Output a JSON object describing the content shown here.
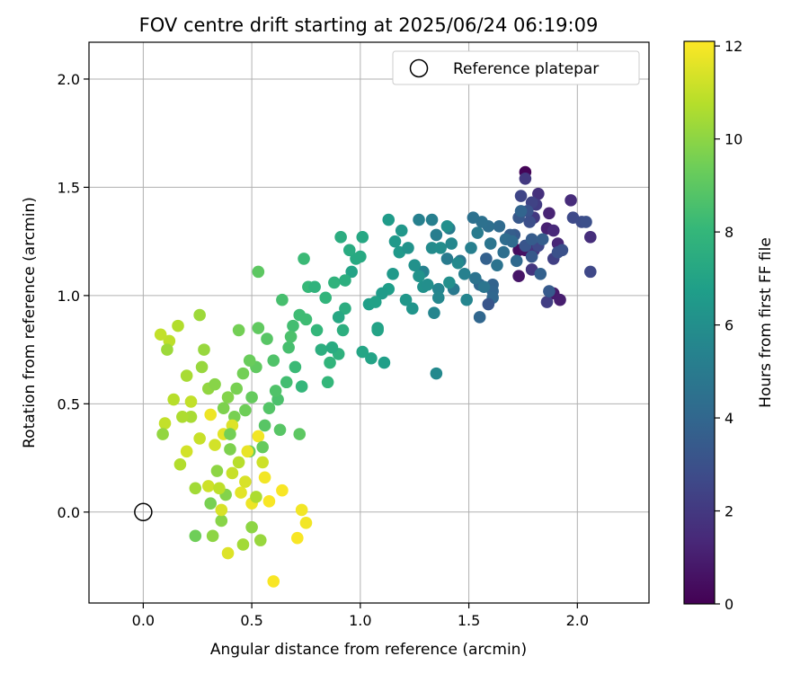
{
  "chart_data": {
    "type": "scatter",
    "title": "FOV centre drift starting at 2025/06/24 06:19:09",
    "xlabel": "Angular distance from reference (arcmin)",
    "ylabel": "Rotation from reference (arcmin)",
    "xlim": [
      -0.25,
      2.33
    ],
    "ylim": [
      -0.42,
      2.17
    ],
    "xticks": [
      0.0,
      0.5,
      1.0,
      1.5,
      2.0
    ],
    "yticks": [
      0.0,
      0.5,
      1.0,
      1.5,
      2.0
    ],
    "xtick_labels": [
      "0.0",
      "0.5",
      "1.0",
      "1.5",
      "2.0"
    ],
    "ytick_labels": [
      "0.0",
      "0.5",
      "1.0",
      "1.5",
      "2.0"
    ],
    "grid": true,
    "legend": {
      "placement": "top-right",
      "entries": [
        {
          "label": "Reference platepar",
          "marker": "open-circle"
        }
      ]
    },
    "reference_point": {
      "x": 0.0,
      "y": 0.0
    },
    "colorbar": {
      "label": "Hours from first FF file",
      "colormap": "viridis",
      "range": [
        0,
        12.1
      ],
      "ticks": [
        0,
        2,
        4,
        6,
        8,
        10,
        12
      ],
      "tick_labels": [
        "0",
        "2",
        "4",
        "6",
        "8",
        "10",
        "12"
      ]
    },
    "colormap_stops": [
      "#440154",
      "#482878",
      "#3e4a89",
      "#31688e",
      "#26828e",
      "#1f9e89",
      "#35b779",
      "#6ece58",
      "#b5de2b",
      "#fde725"
    ],
    "points": [
      {
        "x": 1.76,
        "y": 1.57,
        "h": 0.1
      },
      {
        "x": 1.73,
        "y": 1.21,
        "h": 0.4
      },
      {
        "x": 1.76,
        "y": 1.21,
        "h": 0.6
      },
      {
        "x": 1.73,
        "y": 1.09,
        "h": 0.7
      },
      {
        "x": 1.89,
        "y": 1.01,
        "h": 0.9
      },
      {
        "x": 1.92,
        "y": 0.98,
        "h": 1.0
      },
      {
        "x": 1.86,
        "y": 1.31,
        "h": 1.1
      },
      {
        "x": 1.87,
        "y": 1.38,
        "h": 1.2
      },
      {
        "x": 1.91,
        "y": 1.24,
        "h": 1.3
      },
      {
        "x": 1.89,
        "y": 1.3,
        "h": 1.4
      },
      {
        "x": 1.97,
        "y": 1.44,
        "h": 1.5
      },
      {
        "x": 2.06,
        "y": 1.27,
        "h": 1.6
      },
      {
        "x": 1.82,
        "y": 1.47,
        "h": 1.7
      },
      {
        "x": 1.8,
        "y": 1.21,
        "h": 1.8
      },
      {
        "x": 1.79,
        "y": 1.12,
        "h": 1.9
      },
      {
        "x": 1.8,
        "y": 1.36,
        "h": 2.0
      },
      {
        "x": 1.76,
        "y": 1.54,
        "h": 2.0
      },
      {
        "x": 1.81,
        "y": 1.42,
        "h": 2.1
      },
      {
        "x": 1.86,
        "y": 0.97,
        "h": 2.2
      },
      {
        "x": 1.89,
        "y": 1.17,
        "h": 2.3
      },
      {
        "x": 1.79,
        "y": 1.43,
        "h": 2.4
      },
      {
        "x": 1.74,
        "y": 1.46,
        "h": 2.5
      },
      {
        "x": 2.06,
        "y": 1.11,
        "h": 2.6
      },
      {
        "x": 1.82,
        "y": 1.23,
        "h": 2.6
      },
      {
        "x": 1.98,
        "y": 1.36,
        "h": 2.7
      },
      {
        "x": 2.02,
        "y": 1.34,
        "h": 2.8
      },
      {
        "x": 2.04,
        "y": 1.34,
        "h": 2.9
      },
      {
        "x": 1.91,
        "y": 1.2,
        "h": 3.0
      },
      {
        "x": 1.77,
        "y": 1.39,
        "h": 3.1
      },
      {
        "x": 1.76,
        "y": 1.23,
        "h": 3.2
      },
      {
        "x": 1.79,
        "y": 1.18,
        "h": 3.3
      },
      {
        "x": 1.73,
        "y": 1.36,
        "h": 3.3
      },
      {
        "x": 1.71,
        "y": 1.28,
        "h": 3.4
      },
      {
        "x": 1.79,
        "y": 1.26,
        "h": 3.5
      },
      {
        "x": 1.69,
        "y": 1.28,
        "h": 3.6
      },
      {
        "x": 1.58,
        "y": 1.17,
        "h": 3.7
      },
      {
        "x": 1.61,
        "y": 1.05,
        "h": 3.8
      },
      {
        "x": 1.61,
        "y": 1.02,
        "h": 3.9
      },
      {
        "x": 1.61,
        "y": 0.99,
        "h": 4.0
      },
      {
        "x": 1.55,
        "y": 0.9,
        "h": 4.0
      },
      {
        "x": 1.55,
        "y": 1.05,
        "h": 4.1
      },
      {
        "x": 1.64,
        "y": 1.32,
        "h": 4.2
      },
      {
        "x": 1.67,
        "y": 1.26,
        "h": 4.3
      },
      {
        "x": 1.59,
        "y": 1.32,
        "h": 4.4
      },
      {
        "x": 1.56,
        "y": 1.34,
        "h": 4.5
      },
      {
        "x": 1.52,
        "y": 1.36,
        "h": 4.5
      },
      {
        "x": 1.53,
        "y": 1.08,
        "h": 4.6
      },
      {
        "x": 1.57,
        "y": 1.04,
        "h": 4.7
      },
      {
        "x": 1.46,
        "y": 1.16,
        "h": 4.8
      },
      {
        "x": 1.43,
        "y": 1.03,
        "h": 4.9
      },
      {
        "x": 1.4,
        "y": 1.17,
        "h": 5.0
      },
      {
        "x": 1.41,
        "y": 1.31,
        "h": 5.0
      },
      {
        "x": 1.35,
        "y": 1.28,
        "h": 5.1
      },
      {
        "x": 1.33,
        "y": 1.35,
        "h": 5.2
      },
      {
        "x": 1.27,
        "y": 1.35,
        "h": 5.3
      },
      {
        "x": 1.29,
        "y": 1.11,
        "h": 5.4
      },
      {
        "x": 1.34,
        "y": 0.92,
        "h": 5.5
      },
      {
        "x": 1.36,
        "y": 1.03,
        "h": 5.5
      },
      {
        "x": 1.36,
        "y": 0.99,
        "h": 5.6
      },
      {
        "x": 1.35,
        "y": 0.64,
        "h": 5.7
      },
      {
        "x": 1.33,
        "y": 1.22,
        "h": 5.8
      },
      {
        "x": 1.37,
        "y": 1.22,
        "h": 5.9
      },
      {
        "x": 1.41,
        "y": 1.06,
        "h": 6.0
      },
      {
        "x": 1.4,
        "y": 1.32,
        "h": 6.0
      },
      {
        "x": 1.29,
        "y": 1.04,
        "h": 6.1
      },
      {
        "x": 1.27,
        "y": 1.09,
        "h": 6.2
      },
      {
        "x": 1.24,
        "y": 0.94,
        "h": 6.3
      },
      {
        "x": 1.21,
        "y": 0.98,
        "h": 6.4
      },
      {
        "x": 1.18,
        "y": 1.2,
        "h": 6.5
      },
      {
        "x": 1.16,
        "y": 1.25,
        "h": 6.5
      },
      {
        "x": 1.13,
        "y": 1.35,
        "h": 6.6
      },
      {
        "x": 1.13,
        "y": 1.03,
        "h": 6.7
      },
      {
        "x": 1.11,
        "y": 0.69,
        "h": 6.8
      },
      {
        "x": 1.08,
        "y": 0.85,
        "h": 6.9
      },
      {
        "x": 1.08,
        "y": 0.84,
        "h": 7.0
      },
      {
        "x": 1.05,
        "y": 0.71,
        "h": 7.0
      },
      {
        "x": 1.01,
        "y": 0.74,
        "h": 7.1
      },
      {
        "x": 1.01,
        "y": 1.27,
        "h": 7.2
      },
      {
        "x": 0.98,
        "y": 1.17,
        "h": 7.3
      },
      {
        "x": 0.95,
        "y": 1.21,
        "h": 7.4
      },
      {
        "x": 0.91,
        "y": 1.27,
        "h": 7.5
      },
      {
        "x": 0.93,
        "y": 0.94,
        "h": 7.5
      },
      {
        "x": 0.92,
        "y": 0.84,
        "h": 7.6
      },
      {
        "x": 0.9,
        "y": 0.73,
        "h": 7.7
      },
      {
        "x": 0.88,
        "y": 1.06,
        "h": 7.8
      },
      {
        "x": 0.86,
        "y": 0.69,
        "h": 7.9
      },
      {
        "x": 0.85,
        "y": 0.6,
        "h": 8.0
      },
      {
        "x": 0.8,
        "y": 0.84,
        "h": 8.0
      },
      {
        "x": 0.76,
        "y": 1.04,
        "h": 8.1
      },
      {
        "x": 0.74,
        "y": 1.17,
        "h": 8.2
      },
      {
        "x": 0.72,
        "y": 0.91,
        "h": 8.3
      },
      {
        "x": 0.69,
        "y": 0.86,
        "h": 8.4
      },
      {
        "x": 0.67,
        "y": 0.76,
        "h": 8.5
      },
      {
        "x": 0.64,
        "y": 0.98,
        "h": 8.5
      },
      {
        "x": 0.62,
        "y": 0.52,
        "h": 8.6
      },
      {
        "x": 0.6,
        "y": 0.7,
        "h": 8.7
      },
      {
        "x": 0.58,
        "y": 0.48,
        "h": 8.8
      },
      {
        "x": 0.56,
        "y": 0.4,
        "h": 8.9
      },
      {
        "x": 0.72,
        "y": 0.36,
        "h": 9.0
      },
      {
        "x": 0.53,
        "y": 1.11,
        "h": 9.0
      },
      {
        "x": 0.52,
        "y": 0.67,
        "h": 9.1
      },
      {
        "x": 0.5,
        "y": 0.53,
        "h": 9.2
      },
      {
        "x": 0.49,
        "y": 0.28,
        "h": 9.3
      },
      {
        "x": 0.47,
        "y": 0.47,
        "h": 9.4
      },
      {
        "x": 0.46,
        "y": 0.64,
        "h": 9.5
      },
      {
        "x": 0.44,
        "y": 0.84,
        "h": 9.5
      },
      {
        "x": 0.42,
        "y": 0.44,
        "h": 9.6
      },
      {
        "x": 0.4,
        "y": 0.29,
        "h": 9.7
      },
      {
        "x": 0.38,
        "y": 0.08,
        "h": 9.8
      },
      {
        "x": 0.36,
        "y": -0.04,
        "h": 9.9
      },
      {
        "x": 0.34,
        "y": 0.19,
        "h": 10.0
      },
      {
        "x": 0.32,
        "y": -0.11,
        "h": 10.0
      },
      {
        "x": 0.3,
        "y": 0.57,
        "h": 10.1
      },
      {
        "x": 0.28,
        "y": 0.75,
        "h": 10.2
      },
      {
        "x": 0.26,
        "y": 0.91,
        "h": 10.3
      },
      {
        "x": 0.24,
        "y": 0.11,
        "h": 10.4
      },
      {
        "x": 0.22,
        "y": 0.44,
        "h": 10.5
      },
      {
        "x": 0.2,
        "y": 0.63,
        "h": 10.5
      },
      {
        "x": 0.18,
        "y": 0.44,
        "h": 10.6
      },
      {
        "x": 0.16,
        "y": 0.86,
        "h": 10.7
      },
      {
        "x": 0.14,
        "y": 0.52,
        "h": 10.8
      },
      {
        "x": 0.12,
        "y": 0.79,
        "h": 10.9
      },
      {
        "x": 0.1,
        "y": 0.41,
        "h": 11.0
      },
      {
        "x": 0.08,
        "y": 0.82,
        "h": 11.0
      },
      {
        "x": 0.26,
        "y": 0.34,
        "h": 11.1
      },
      {
        "x": 0.3,
        "y": 0.12,
        "h": 11.2
      },
      {
        "x": 0.33,
        "y": 0.31,
        "h": 11.3
      },
      {
        "x": 0.36,
        "y": 0.01,
        "h": 11.4
      },
      {
        "x": 0.39,
        "y": -0.19,
        "h": 11.5
      },
      {
        "x": 0.41,
        "y": 0.4,
        "h": 11.5
      },
      {
        "x": 0.45,
        "y": 0.09,
        "h": 11.6
      },
      {
        "x": 0.48,
        "y": 0.28,
        "h": 11.7
      },
      {
        "x": 0.5,
        "y": 0.04,
        "h": 11.8
      },
      {
        "x": 0.53,
        "y": 0.35,
        "h": 11.9
      },
      {
        "x": 0.56,
        "y": 0.16,
        "h": 11.9
      },
      {
        "x": 0.58,
        "y": 0.05,
        "h": 12.0
      },
      {
        "x": 0.6,
        "y": -0.32,
        "h": 12.0
      },
      {
        "x": 0.64,
        "y": 0.1,
        "h": 12.0
      },
      {
        "x": 0.71,
        "y": -0.12,
        "h": 12.0
      },
      {
        "x": 0.73,
        "y": 0.01,
        "h": 11.9
      },
      {
        "x": 0.75,
        "y": -0.05,
        "h": 11.9
      },
      {
        "x": 0.31,
        "y": 0.45,
        "h": 11.8
      },
      {
        "x": 0.37,
        "y": 0.36,
        "h": 11.6
      },
      {
        "x": 0.47,
        "y": 0.14,
        "h": 11.4
      },
      {
        "x": 0.55,
        "y": 0.23,
        "h": 11.2
      },
      {
        "x": 0.41,
        "y": 0.18,
        "h": 11.1
      },
      {
        "x": 0.35,
        "y": 0.11,
        "h": 10.9
      },
      {
        "x": 0.44,
        "y": 0.23,
        "h": 10.8
      },
      {
        "x": 0.52,
        "y": 0.07,
        "h": 10.6
      },
      {
        "x": 0.46,
        "y": -0.15,
        "h": 10.4
      },
      {
        "x": 0.54,
        "y": -0.13,
        "h": 10.2
      },
      {
        "x": 0.5,
        "y": -0.07,
        "h": 10.0
      },
      {
        "x": 0.39,
        "y": 0.53,
        "h": 9.8
      },
      {
        "x": 0.43,
        "y": 0.57,
        "h": 9.6
      },
      {
        "x": 0.49,
        "y": 0.7,
        "h": 9.3
      },
      {
        "x": 0.53,
        "y": 0.85,
        "h": 9.1
      },
      {
        "x": 0.57,
        "y": 0.8,
        "h": 8.9
      },
      {
        "x": 0.61,
        "y": 0.56,
        "h": 8.7
      },
      {
        "x": 0.66,
        "y": 0.6,
        "h": 8.4
      },
      {
        "x": 0.7,
        "y": 0.67,
        "h": 8.2
      },
      {
        "x": 0.73,
        "y": 0.58,
        "h": 8.0
      },
      {
        "x": 0.79,
        "y": 1.04,
        "h": 7.8
      },
      {
        "x": 0.82,
        "y": 0.75,
        "h": 7.6
      },
      {
        "x": 0.87,
        "y": 0.76,
        "h": 7.4
      },
      {
        "x": 0.9,
        "y": 0.9,
        "h": 7.2
      },
      {
        "x": 0.96,
        "y": 1.11,
        "h": 7.0
      },
      {
        "x": 1.04,
        "y": 0.96,
        "h": 6.8
      },
      {
        "x": 1.1,
        "y": 1.01,
        "h": 6.6
      },
      {
        "x": 1.19,
        "y": 1.3,
        "h": 6.4
      },
      {
        "x": 1.22,
        "y": 1.22,
        "h": 6.2
      },
      {
        "x": 1.31,
        "y": 1.05,
        "h": 6.0
      },
      {
        "x": 1.45,
        "y": 1.15,
        "h": 5.7
      },
      {
        "x": 1.49,
        "y": 0.98,
        "h": 5.5
      },
      {
        "x": 1.51,
        "y": 1.22,
        "h": 5.2
      },
      {
        "x": 1.54,
        "y": 1.29,
        "h": 5.0
      },
      {
        "x": 1.6,
        "y": 1.24,
        "h": 4.7
      },
      {
        "x": 1.66,
        "y": 1.2,
        "h": 4.4
      },
      {
        "x": 1.7,
        "y": 1.25,
        "h": 4.2
      },
      {
        "x": 1.74,
        "y": 1.39,
        "h": 3.9
      },
      {
        "x": 1.84,
        "y": 1.26,
        "h": 3.6
      },
      {
        "x": 1.87,
        "y": 1.02,
        "h": 3.4
      },
      {
        "x": 1.59,
        "y": 0.96,
        "h": 3.2
      },
      {
        "x": 1.78,
        "y": 1.34,
        "h": 2.9
      },
      {
        "x": 0.2,
        "y": 0.28,
        "h": 11.3
      },
      {
        "x": 0.22,
        "y": 0.51,
        "h": 11.0
      },
      {
        "x": 0.17,
        "y": 0.22,
        "h": 10.7
      },
      {
        "x": 0.11,
        "y": 0.75,
        "h": 10.3
      },
      {
        "x": 0.09,
        "y": 0.36,
        "h": 10.1
      },
      {
        "x": 0.27,
        "y": 0.67,
        "h": 10.2
      },
      {
        "x": 0.33,
        "y": 0.59,
        "h": 9.9
      },
      {
        "x": 0.37,
        "y": 0.48,
        "h": 9.7
      },
      {
        "x": 0.4,
        "y": 0.36,
        "h": 9.5
      },
      {
        "x": 0.31,
        "y": 0.04,
        "h": 9.6
      },
      {
        "x": 0.24,
        "y": -0.11,
        "h": 9.4
      },
      {
        "x": 0.55,
        "y": 0.3,
        "h": 9.2
      },
      {
        "x": 0.63,
        "y": 0.38,
        "h": 8.9
      },
      {
        "x": 0.68,
        "y": 0.81,
        "h": 8.6
      },
      {
        "x": 0.75,
        "y": 0.89,
        "h": 8.3
      },
      {
        "x": 0.84,
        "y": 0.99,
        "h": 7.9
      },
      {
        "x": 0.93,
        "y": 1.07,
        "h": 7.6
      },
      {
        "x": 1.0,
        "y": 1.18,
        "h": 7.3
      },
      {
        "x": 1.07,
        "y": 0.97,
        "h": 6.9
      },
      {
        "x": 1.15,
        "y": 1.1,
        "h": 6.5
      },
      {
        "x": 1.25,
        "y": 1.14,
        "h": 6.1
      },
      {
        "x": 1.42,
        "y": 1.24,
        "h": 5.6
      },
      {
        "x": 1.48,
        "y": 1.1,
        "h": 5.3
      },
      {
        "x": 1.63,
        "y": 1.14,
        "h": 4.6
      },
      {
        "x": 1.72,
        "y": 1.16,
        "h": 4.1
      },
      {
        "x": 1.83,
        "y": 1.1,
        "h": 3.7
      },
      {
        "x": 1.93,
        "y": 1.21,
        "h": 3.0
      }
    ]
  }
}
